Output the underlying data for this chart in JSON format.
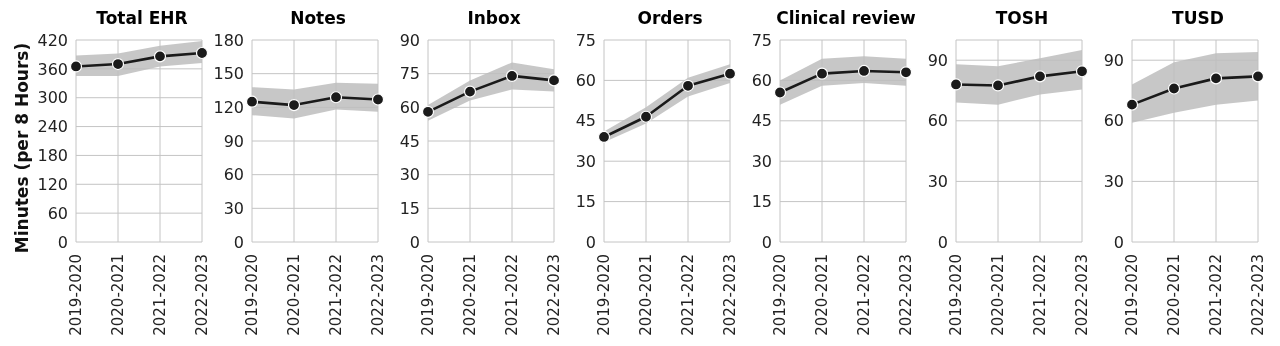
{
  "chart_data": [
    {
      "type": "line",
      "title": "Total EHR",
      "ylabel": "Minutes (per 8 Hours)",
      "categories": [
        "2019-2020",
        "2020-2021",
        "2021-2022",
        "2022-2023"
      ],
      "ylim": [
        0,
        420
      ],
      "yticks": [
        0,
        60,
        120,
        180,
        240,
        300,
        360,
        420
      ],
      "grid": true,
      "marker": "circle",
      "series": [
        {
          "color": "#1a1a1a",
          "values": [
            365,
            370,
            386,
            393
          ],
          "lower": [
            345,
            345,
            365,
            372
          ],
          "upper": [
            388,
            392,
            408,
            418
          ]
        }
      ]
    },
    {
      "type": "line",
      "title": "Notes",
      "categories": [
        "2019-2020",
        "2020-2021",
        "2021-2022",
        "2022-2023"
      ],
      "ylim": [
        0,
        180
      ],
      "yticks": [
        0,
        30,
        60,
        90,
        120,
        150,
        180
      ],
      "grid": true,
      "marker": "circle",
      "series": [
        {
          "color": "#1a1a1a",
          "values": [
            125,
            122,
            129,
            127
          ],
          "lower": [
            113,
            110,
            118,
            116
          ],
          "upper": [
            138,
            136,
            142,
            141
          ]
        }
      ]
    },
    {
      "type": "line",
      "title": "Inbox",
      "categories": [
        "2019-2020",
        "2020-2021",
        "2021-2022",
        "2022-2023"
      ],
      "ylim": [
        0,
        90
      ],
      "yticks": [
        0,
        15,
        30,
        45,
        60,
        75,
        90
      ],
      "grid": true,
      "marker": "circle",
      "series": [
        {
          "color": "#1a1a1a",
          "values": [
            58,
            67,
            74,
            72
          ],
          "lower": [
            54,
            63,
            68,
            67
          ],
          "upper": [
            61,
            72,
            80,
            77
          ]
        }
      ]
    },
    {
      "type": "line",
      "title": "Orders",
      "categories": [
        "2019-2020",
        "2020-2021",
        "2021-2022",
        "2022-2023"
      ],
      "ylim": [
        0,
        75
      ],
      "yticks": [
        0,
        15,
        30,
        45,
        60,
        75
      ],
      "grid": true,
      "marker": "circle",
      "series": [
        {
          "color": "#1a1a1a",
          "values": [
            39,
            46.5,
            58,
            62.5
          ],
          "lower": [
            37,
            44,
            54,
            59
          ],
          "upper": [
            41,
            50,
            61,
            66
          ]
        }
      ]
    },
    {
      "type": "line",
      "title": "Clinical review",
      "categories": [
        "2019-2020",
        "2020-2021",
        "2021-2022",
        "2022-2023"
      ],
      "ylim": [
        0,
        75
      ],
      "yticks": [
        0,
        15,
        30,
        45,
        60,
        75
      ],
      "grid": true,
      "marker": "circle",
      "series": [
        {
          "color": "#1a1a1a",
          "values": [
            55.5,
            62.5,
            63.5,
            63
          ],
          "lower": [
            51,
            58,
            59,
            58
          ],
          "upper": [
            60,
            68,
            69,
            68
          ]
        }
      ]
    },
    {
      "type": "line",
      "title": "TOSH",
      "categories": [
        "2019-2020",
        "2020-2021",
        "2021-2022",
        "2022-2023"
      ],
      "ylim": [
        0,
        100
      ],
      "yticks": [
        0,
        30,
        60,
        90
      ],
      "grid": true,
      "marker": "circle",
      "series": [
        {
          "color": "#1a1a1a",
          "values": [
            78,
            77.5,
            82,
            84.5
          ],
          "lower": [
            69,
            68,
            73,
            75.5
          ],
          "upper": [
            88,
            87,
            91,
            95
          ]
        }
      ]
    },
    {
      "type": "line",
      "title": "TUSD",
      "categories": [
        "2019-2020",
        "2020-2021",
        "2021-2022",
        "2022-2023"
      ],
      "ylim": [
        0,
        100
      ],
      "yticks": [
        0,
        30,
        60,
        90
      ],
      "grid": true,
      "marker": "circle",
      "series": [
        {
          "color": "#1a1a1a",
          "values": [
            68,
            76,
            81,
            82
          ],
          "lower": [
            59,
            64,
            68,
            70
          ],
          "upper": [
            78,
            89,
            93.5,
            94
          ]
        }
      ]
    }
  ]
}
